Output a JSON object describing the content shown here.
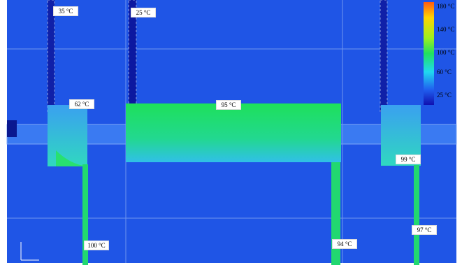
{
  "labels": [
    "35 °C",
    "25 °C",
    "62 °C",
    "95 °C",
    "99 °C",
    "97 °C",
    "100 °C",
    "94 °C"
  ],
  "legend": [
    "180 °C",
    "140 °C",
    "100 °C",
    "60 °C",
    "25 °C"
  ]
}
